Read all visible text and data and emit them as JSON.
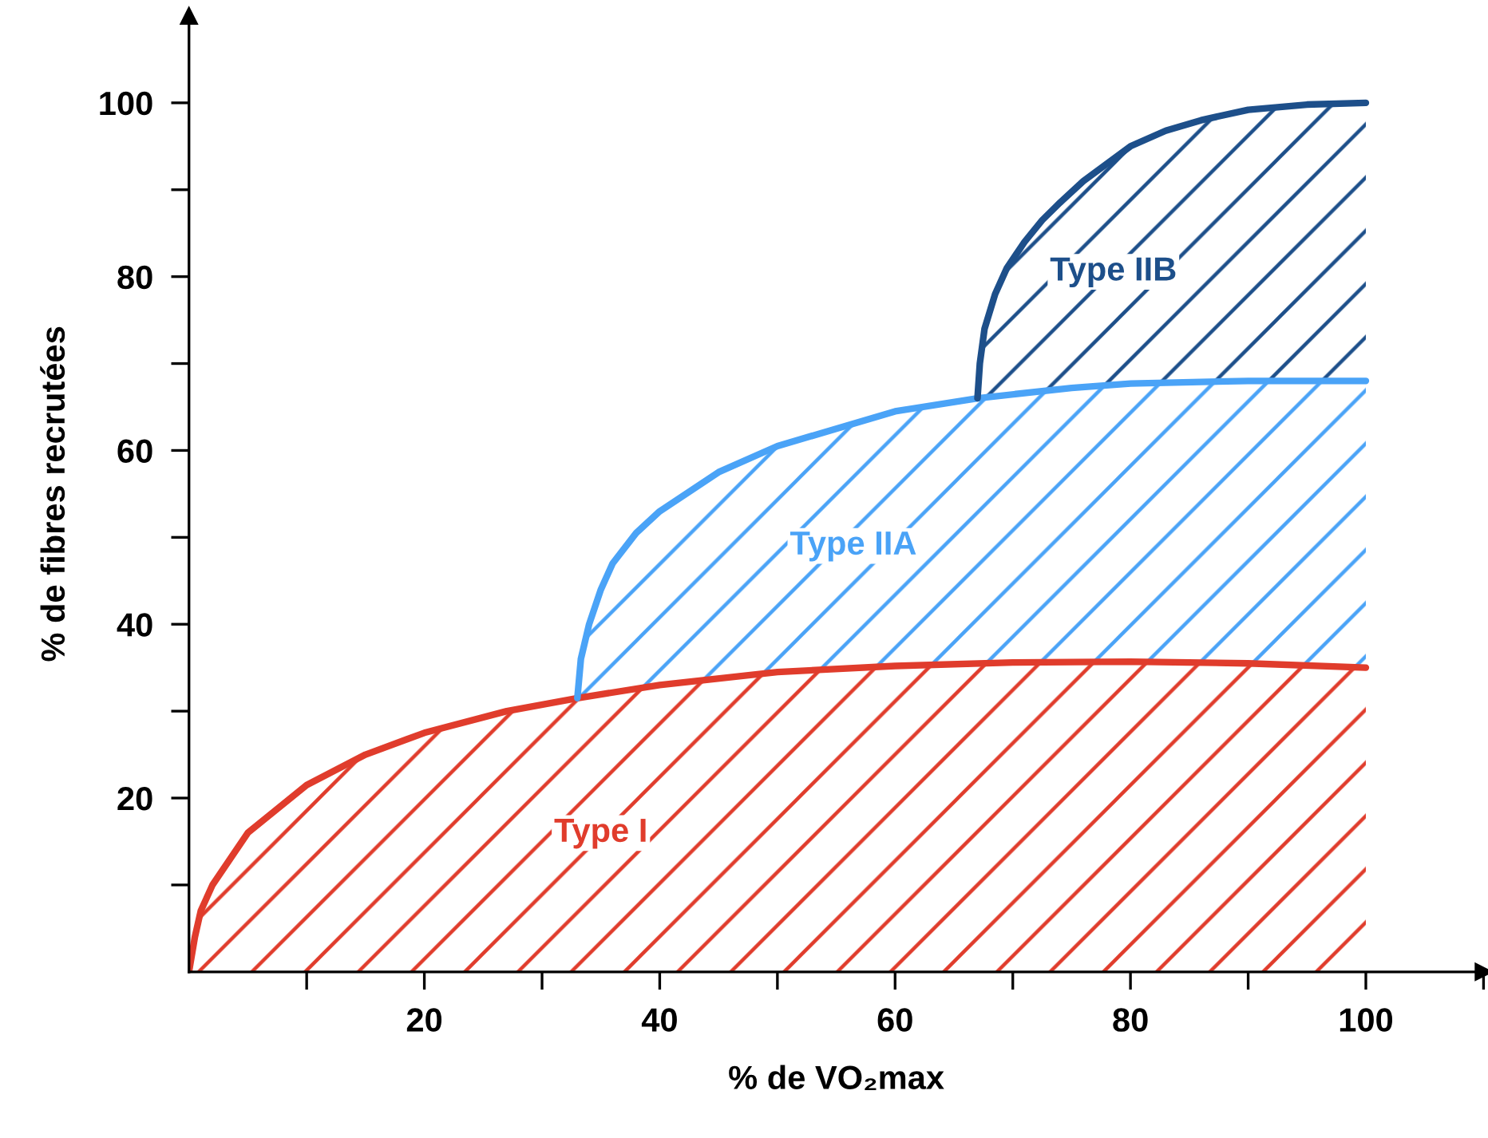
{
  "chart_data": {
    "type": "area",
    "xlabel": "% de VO₂max",
    "ylabel": "% de fibres recrutées",
    "xlim": [
      0,
      110
    ],
    "ylim": [
      0,
      110
    ],
    "xticks": [
      {
        "value": 10,
        "label": null
      },
      20,
      {
        "value": 30,
        "label": null
      },
      40,
      {
        "value": 50,
        "label": null
      },
      60,
      {
        "value": 70,
        "label": null
      },
      80,
      {
        "value": 90,
        "label": null
      },
      100,
      {
        "value": 110,
        "label": null
      }
    ],
    "yticks": [
      {
        "value": 10,
        "label": null
      },
      20,
      {
        "value": 30,
        "label": null
      },
      40,
      {
        "value": 50,
        "label": null
      },
      60,
      {
        "value": 70,
        "label": null
      },
      80,
      {
        "value": 90,
        "label": null
      },
      100
    ],
    "grid": false,
    "legend": false,
    "series": [
      {
        "name": "Type I",
        "color": "#e03c2c",
        "x": [
          0,
          0.5,
          1,
          2,
          5,
          10,
          15,
          20,
          27,
          33,
          40,
          50,
          60,
          70,
          80,
          90,
          100
        ],
        "values": [
          0,
          4,
          7,
          10,
          16,
          21.5,
          25,
          27.5,
          30,
          31.5,
          33,
          34.5,
          35.2,
          35.6,
          35.7,
          35.5,
          35
        ]
      },
      {
        "name": "Type IIA",
        "color": "#4aa3f7",
        "x": [
          33,
          33.3,
          34,
          35,
          36,
          38,
          40,
          45,
          50,
          55,
          60,
          67,
          75,
          80,
          90,
          100
        ],
        "values": [
          31.5,
          36,
          40,
          44,
          47,
          50.5,
          53,
          57.5,
          60.5,
          62.5,
          64.5,
          66,
          67.2,
          67.7,
          68,
          68
        ]
      },
      {
        "name": "Type IIB",
        "color": "#1d4f8a",
        "x": [
          67,
          67.2,
          67.6,
          68.5,
          69.5,
          71,
          72.5,
          74,
          76,
          78,
          80,
          83,
          86,
          90,
          95,
          100
        ],
        "values": [
          66,
          70,
          74,
          78,
          81,
          84,
          86.5,
          88.5,
          91,
          93,
          95,
          96.8,
          98,
          99.2,
          99.8,
          100
        ]
      }
    ]
  }
}
